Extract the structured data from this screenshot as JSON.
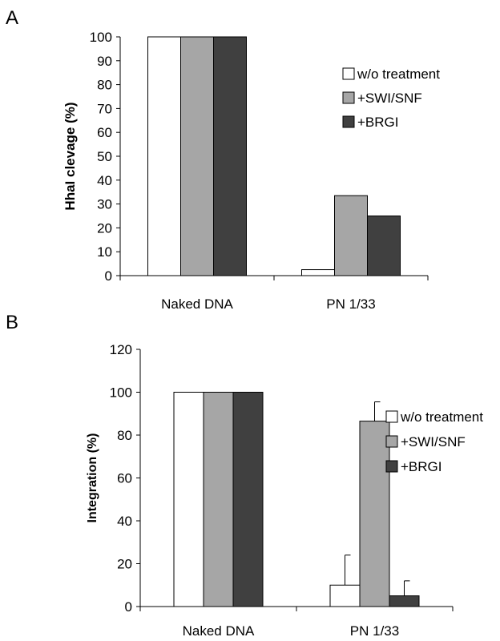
{
  "panels": [
    {
      "letter": "A"
    },
    {
      "letter": "B"
    }
  ],
  "chart_data": [
    {
      "type": "bar",
      "categories": [
        "Naked DNA",
        "PN 1/33"
      ],
      "series": [
        {
          "name": "w/o treatment",
          "values": [
            100,
            2.5
          ],
          "color": "#ffffff"
        },
        {
          "name": "+SWI/SNF",
          "values": [
            100,
            33.5
          ],
          "color": "#a6a6a6"
        },
        {
          "name": "+BRGI",
          "values": [
            100,
            25
          ],
          "color": "#404040"
        }
      ],
      "title": "",
      "xlabel": "",
      "ylabel": "HhaI clevage (%)",
      "ylim": [
        0,
        100
      ],
      "yticks": [
        0,
        10,
        20,
        30,
        40,
        50,
        60,
        70,
        80,
        90,
        100
      ],
      "grid": false,
      "legend": "right"
    },
    {
      "type": "bar",
      "categories": [
        "Naked DNA",
        "PN 1/33"
      ],
      "series": [
        {
          "name": "w/o treatment",
          "values": [
            100,
            10
          ],
          "errors": [
            0,
            14
          ],
          "color": "#ffffff"
        },
        {
          "name": "+SWI/SNF",
          "values": [
            100,
            86.5
          ],
          "errors": [
            0,
            9
          ],
          "color": "#a6a6a6"
        },
        {
          "name": "+BRGI",
          "values": [
            100,
            5
          ],
          "errors": [
            0,
            7
          ],
          "color": "#404040"
        }
      ],
      "title": "",
      "xlabel": "",
      "ylabel": "Integration (%)",
      "ylim": [
        0,
        120
      ],
      "yticks": [
        0,
        20,
        40,
        60,
        80,
        100,
        120
      ],
      "grid": false,
      "legend": "right"
    }
  ]
}
